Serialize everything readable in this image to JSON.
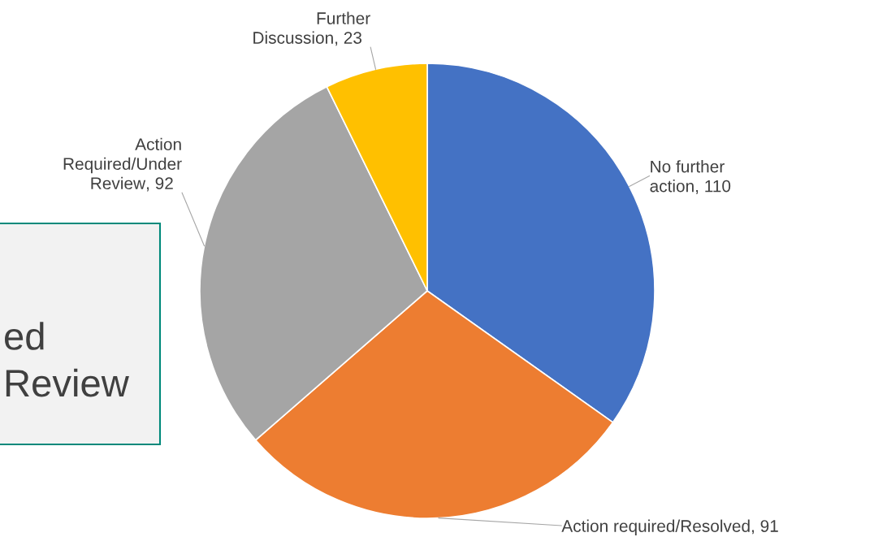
{
  "chart_data": {
    "type": "pie",
    "categories": [
      "No further\naction",
      "Action required/Resolved",
      "Action\nRequired/Under\nReview",
      "Further\nDiscussion"
    ],
    "values": [
      110,
      91,
      92,
      23
    ],
    "colors": [
      "#4472c4",
      "#ed7d31",
      "#a5a5a5",
      "#ffc000"
    ],
    "value_labels": [
      ", 110",
      ", 91",
      ", 92",
      ", 23"
    ],
    "annotations": [
      "ed\nReview"
    ]
  }
}
